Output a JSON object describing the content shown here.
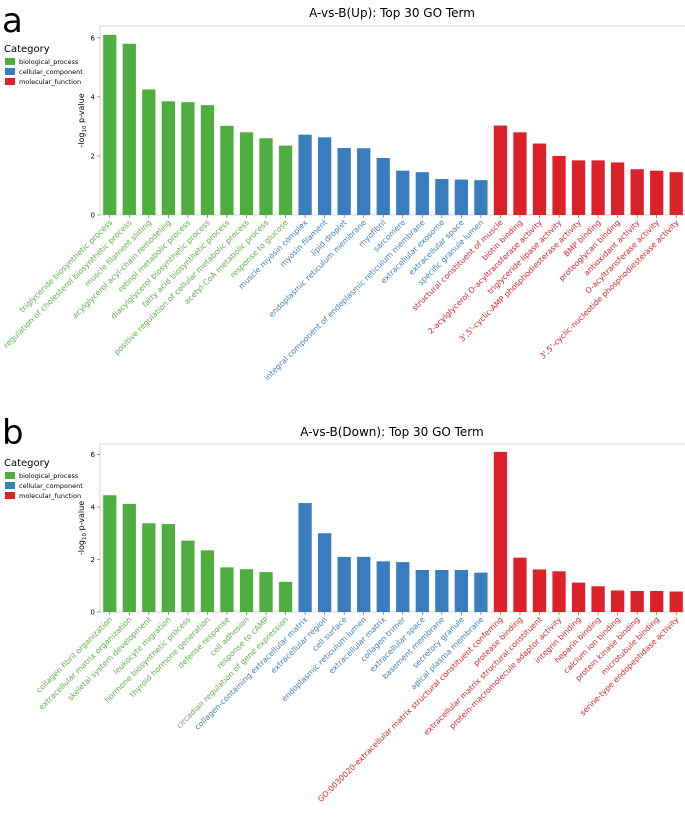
{
  "panels": [
    {
      "letter": "a"
    },
    {
      "letter": "b"
    }
  ],
  "legend": {
    "title": "Category",
    "items": [
      {
        "label": "biological_process",
        "color": "#4fae3f"
      },
      {
        "label": "cellular_component",
        "color": "#3a7dbe"
      },
      {
        "label": "molecular_function",
        "color": "#dc2229"
      }
    ]
  },
  "chart_data": [
    {
      "type": "bar",
      "title": "A-vs-B(Up): Top 30 GO Term",
      "ylabel": "-log10 p-value",
      "ylim": [
        0,
        6.4
      ],
      "yticks": [
        0,
        2,
        4,
        6
      ],
      "grid": false,
      "legend_position": "left",
      "categories": [
        "triglyceride biosynthetic process",
        "regulation of cholesterol biosynthetic process",
        "muscle filament sliding",
        "acylglycerol acyl-chain remodeling",
        "retinol metabolic process",
        "diacylglycerol biosynthetic process",
        "fatty acid biosynthetic process",
        "positive regulation of cellular metabolic process",
        "acetyl-CoA metabolic process",
        "response to glucose",
        "muscle myosin complex",
        "myosin filament",
        "lipid droplet",
        "endoplasmic reticulum membrane",
        "myofibril",
        "sarcomere",
        "integral component of endoplasmic reticulum membrane",
        "extracellular exosome",
        "extracellular space",
        "specific granule lumen",
        "structural constituent of muscle",
        "biotin binding",
        "2-acylglycerol O-acyltransferase activity",
        "triglyceride lipase activity",
        "3',5'-cyclic-AMP phosphodiesterase activity",
        "BMP binding",
        "proteoglycan binding",
        "antioxidant activity",
        "O-acyltransferase activity",
        "3',5'-cyclic-nucleotide phosphodiesterase activity"
      ],
      "values": [
        6.1,
        5.8,
        4.25,
        3.85,
        3.82,
        3.72,
        3.02,
        2.8,
        2.6,
        2.35,
        2.72,
        2.63,
        2.27,
        2.26,
        1.93,
        1.5,
        1.45,
        1.22,
        1.2,
        1.18,
        3.03,
        2.8,
        2.42,
        2.0,
        1.85,
        1.85,
        1.78,
        1.55,
        1.5,
        1.45
      ],
      "groups": [
        "biological_process",
        "biological_process",
        "biological_process",
        "biological_process",
        "biological_process",
        "biological_process",
        "biological_process",
        "biological_process",
        "biological_process",
        "biological_process",
        "cellular_component",
        "cellular_component",
        "cellular_component",
        "cellular_component",
        "cellular_component",
        "cellular_component",
        "cellular_component",
        "cellular_component",
        "cellular_component",
        "cellular_component",
        "molecular_function",
        "molecular_function",
        "molecular_function",
        "molecular_function",
        "molecular_function",
        "molecular_function",
        "molecular_function",
        "molecular_function",
        "molecular_function",
        "molecular_function"
      ]
    },
    {
      "type": "bar",
      "title": "A-vs-B(Down): Top 30 GO Term",
      "ylabel": "-log10 p-value",
      "ylim": [
        0,
        6.4
      ],
      "yticks": [
        0,
        2,
        4,
        6
      ],
      "grid": false,
      "legend_position": "left",
      "categories": [
        "collagen fibril organization",
        "extracellular matrix organization",
        "skeletal system development",
        "leukocyte migration",
        "hormone biosynthetic process",
        "thyroid hormone generation",
        "defense response",
        "cell adhesion",
        "response to cAMP",
        "circadian regulation of gene expression",
        "collagen-containing extracellular matrix",
        "extracellular region",
        "cell surface",
        "endoplasmic reticulum lumen",
        "extracellular matrix",
        "collagen trimer",
        "extracellular space",
        "basement membrane",
        "secretory granule",
        "apical plasma membrane",
        "GO:0030020-extracellular matrix structural constituent conferring",
        "protease binding",
        "extracellular matrix structural constituent",
        "protein-macromolecule adaptor activity",
        "integrin binding",
        "heparin binding",
        "calcium ion binding",
        "protein kinase binding",
        "microtubule binding",
        "serine-type endopeptidase activity"
      ],
      "values": [
        4.45,
        4.12,
        3.38,
        3.35,
        2.72,
        2.35,
        1.7,
        1.63,
        1.52,
        1.15,
        4.15,
        3.0,
        2.1,
        2.1,
        1.93,
        1.9,
        1.6,
        1.6,
        1.6,
        1.5,
        6.1,
        2.07,
        1.62,
        1.55,
        1.12,
        0.98,
        0.82,
        0.8,
        0.8,
        0.78
      ],
      "groups": [
        "biological_process",
        "biological_process",
        "biological_process",
        "biological_process",
        "biological_process",
        "biological_process",
        "biological_process",
        "biological_process",
        "biological_process",
        "biological_process",
        "cellular_component",
        "cellular_component",
        "cellular_component",
        "cellular_component",
        "cellular_component",
        "cellular_component",
        "cellular_component",
        "cellular_component",
        "cellular_component",
        "cellular_component",
        "molecular_function",
        "molecular_function",
        "molecular_function",
        "molecular_function",
        "molecular_function",
        "molecular_function",
        "molecular_function",
        "molecular_function",
        "molecular_function",
        "molecular_function"
      ]
    }
  ]
}
